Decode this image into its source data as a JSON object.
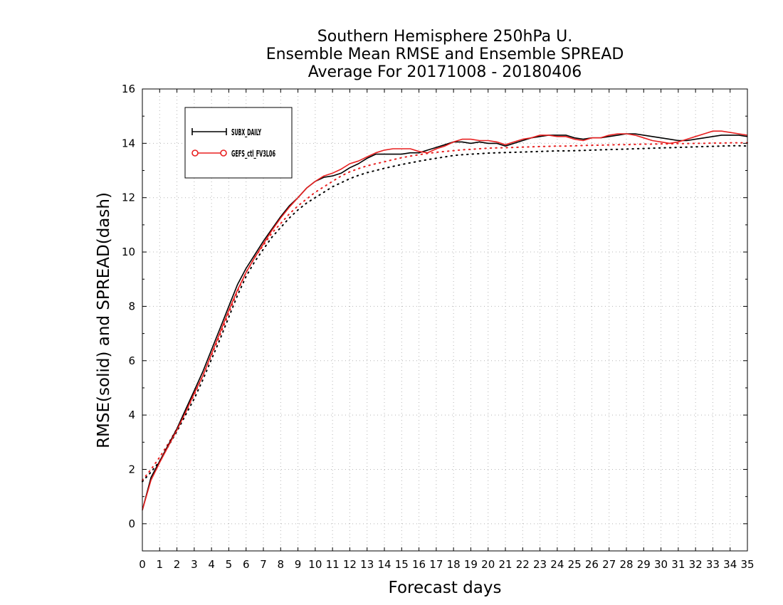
{
  "chart_data": {
    "type": "line",
    "title": [
      "Southern Hemisphere 250hPa U.",
      "Ensemble Mean RMSE and Ensemble SPREAD",
      "Average For 20171008 - 20180406"
    ],
    "xlabel": "Forecast days",
    "ylabel": "RMSE(solid) and SPREAD(dash)",
    "xlim": [
      0,
      35
    ],
    "ylim": [
      -1,
      16
    ],
    "xticks": [
      0,
      1,
      2,
      3,
      4,
      5,
      6,
      7,
      8,
      9,
      10,
      11,
      12,
      13,
      14,
      15,
      16,
      17,
      18,
      19,
      20,
      21,
      22,
      23,
      24,
      25,
      26,
      27,
      28,
      29,
      30,
      31,
      32,
      33,
      34,
      35
    ],
    "yticks": [
      0,
      2,
      4,
      6,
      8,
      10,
      12,
      14,
      16
    ],
    "grid": true,
    "legend_position": "top-left",
    "x": [
      0,
      0.5,
      1,
      1.5,
      2,
      2.5,
      3,
      3.5,
      4,
      4.5,
      5,
      5.5,
      6,
      6.5,
      7,
      7.5,
      8,
      8.5,
      9,
      9.5,
      10,
      10.5,
      11,
      11.5,
      12,
      12.5,
      13,
      13.5,
      14,
      14.5,
      15,
      15.5,
      16,
      16.5,
      17,
      17.5,
      18,
      18.5,
      19,
      19.5,
      20,
      20.5,
      21,
      21.5,
      22,
      22.5,
      23,
      23.5,
      24,
      24.5,
      25,
      25.5,
      26,
      26.5,
      27,
      27.5,
      28,
      28.5,
      29,
      29.5,
      30,
      30.5,
      31,
      31.5,
      32,
      32.5,
      33,
      33.5,
      34,
      34.5,
      35
    ],
    "series": [
      {
        "name": "SUBX_DAILY",
        "metric": "RMSE",
        "style": "solid",
        "marker": "plus",
        "color": "#000000",
        "values": [
          0.5,
          1.7,
          2.3,
          2.9,
          3.5,
          4.2,
          4.9,
          5.6,
          6.4,
          7.2,
          8.0,
          8.8,
          9.4,
          9.9,
          10.4,
          10.85,
          11.3,
          11.7,
          12.0,
          12.35,
          12.6,
          12.75,
          12.8,
          12.9,
          13.1,
          13.25,
          13.45,
          13.6,
          13.6,
          13.6,
          13.6,
          13.65,
          13.65,
          13.75,
          13.85,
          13.95,
          14.05,
          14.05,
          14.0,
          14.05,
          14.0,
          14.0,
          13.9,
          14.0,
          14.1,
          14.2,
          14.25,
          14.3,
          14.3,
          14.3,
          14.2,
          14.15,
          14.2,
          14.2,
          14.25,
          14.3,
          14.35,
          14.35,
          14.3,
          14.25,
          14.2,
          14.15,
          14.1,
          14.1,
          14.15,
          14.2,
          14.25,
          14.3,
          14.3,
          14.3,
          14.25
        ]
      },
      {
        "name": "GEFS_ctl_FV3L06",
        "metric": "RMSE",
        "style": "solid",
        "marker": "circle",
        "color": "#e82020",
        "values": [
          0.5,
          1.6,
          2.25,
          2.85,
          3.45,
          4.1,
          4.8,
          5.45,
          6.25,
          7.05,
          7.85,
          8.6,
          9.25,
          9.8,
          10.3,
          10.8,
          11.25,
          11.65,
          12.0,
          12.35,
          12.6,
          12.8,
          12.9,
          13.05,
          13.25,
          13.35,
          13.5,
          13.65,
          13.75,
          13.8,
          13.8,
          13.8,
          13.7,
          13.65,
          13.8,
          13.9,
          14.05,
          14.15,
          14.15,
          14.1,
          14.1,
          14.05,
          13.95,
          14.05,
          14.15,
          14.2,
          14.3,
          14.3,
          14.25,
          14.25,
          14.15,
          14.1,
          14.2,
          14.2,
          14.3,
          14.35,
          14.35,
          14.3,
          14.2,
          14.1,
          14.05,
          14.0,
          14.05,
          14.15,
          14.25,
          14.35,
          14.45,
          14.45,
          14.4,
          14.35,
          14.3
        ]
      },
      {
        "name": "SUBX_DAILY",
        "metric": "SPREAD",
        "style": "dotted",
        "color": "#000000",
        "values": [
          1.55,
          1.9,
          2.3,
          2.85,
          3.4,
          4.0,
          4.6,
          5.3,
          6.05,
          6.8,
          7.6,
          8.4,
          9.1,
          9.65,
          10.1,
          10.55,
          10.9,
          11.25,
          11.55,
          11.8,
          12.0,
          12.2,
          12.4,
          12.55,
          12.7,
          12.82,
          12.92,
          13.0,
          13.08,
          13.15,
          13.22,
          13.28,
          13.34,
          13.4,
          13.45,
          13.5,
          13.55,
          13.58,
          13.6,
          13.62,
          13.64,
          13.65,
          13.66,
          13.67,
          13.68,
          13.69,
          13.7,
          13.71,
          13.72,
          13.72,
          13.73,
          13.74,
          13.75,
          13.76,
          13.77,
          13.78,
          13.79,
          13.8,
          13.81,
          13.82,
          13.83,
          13.84,
          13.85,
          13.86,
          13.87,
          13.88,
          13.89,
          13.9,
          13.91,
          13.91,
          13.9
        ]
      },
      {
        "name": "GEFS_ctl_FV3L06",
        "metric": "SPREAD",
        "style": "dotted",
        "color": "#e82020",
        "values": [
          1.6,
          2.0,
          2.45,
          2.95,
          3.5,
          4.1,
          4.75,
          5.45,
          6.2,
          6.95,
          7.75,
          8.55,
          9.25,
          9.8,
          10.25,
          10.7,
          11.05,
          11.4,
          11.7,
          11.95,
          12.2,
          12.4,
          12.6,
          12.8,
          12.95,
          13.07,
          13.17,
          13.25,
          13.32,
          13.4,
          13.47,
          13.53,
          13.58,
          13.63,
          13.67,
          13.7,
          13.73,
          13.76,
          13.78,
          13.8,
          13.82,
          13.83,
          13.84,
          13.85,
          13.86,
          13.87,
          13.88,
          13.89,
          13.9,
          13.9,
          13.91,
          13.92,
          13.93,
          13.93,
          13.94,
          13.95,
          13.95,
          13.96,
          13.97,
          13.97,
          13.98,
          13.98,
          13.99,
          13.99,
          14.0,
          14.0,
          14.01,
          14.01,
          14.02,
          14.02,
          14.02
        ]
      }
    ],
    "legend": [
      {
        "label": "SUBX_DAILY",
        "color": "#000000",
        "marker": "plus"
      },
      {
        "label": "GEFS_ctl_FV3L06",
        "color": "#e82020",
        "marker": "circle"
      }
    ]
  }
}
